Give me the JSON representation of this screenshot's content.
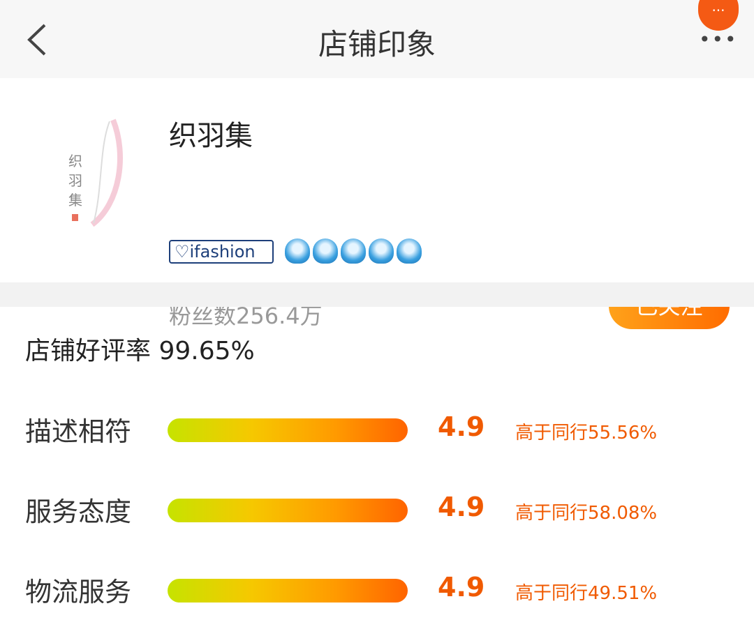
{
  "header": {
    "title": "店铺印象",
    "more_badge": "···",
    "more_dots": "•••"
  },
  "shop": {
    "name": "织羽集",
    "logo_text": "织羽集",
    "brand_badge": "ifashion",
    "crowns": 5,
    "fans": "粉丝数256.4万",
    "follow_label": "已关注"
  },
  "ratings": {
    "good_rate": "店铺好评率 99.65%",
    "rows": [
      {
        "label": "描述相符",
        "score": "4.9",
        "compare": "高于同行55.56%"
      },
      {
        "label": "服务态度",
        "score": "4.9",
        "compare": "高于同行58.08%"
      },
      {
        "label": "物流服务",
        "score": "4.9",
        "compare": "高于同行49.51%"
      }
    ]
  },
  "colors": {
    "accent": "#f05a00",
    "follow": "#ff7a00"
  }
}
